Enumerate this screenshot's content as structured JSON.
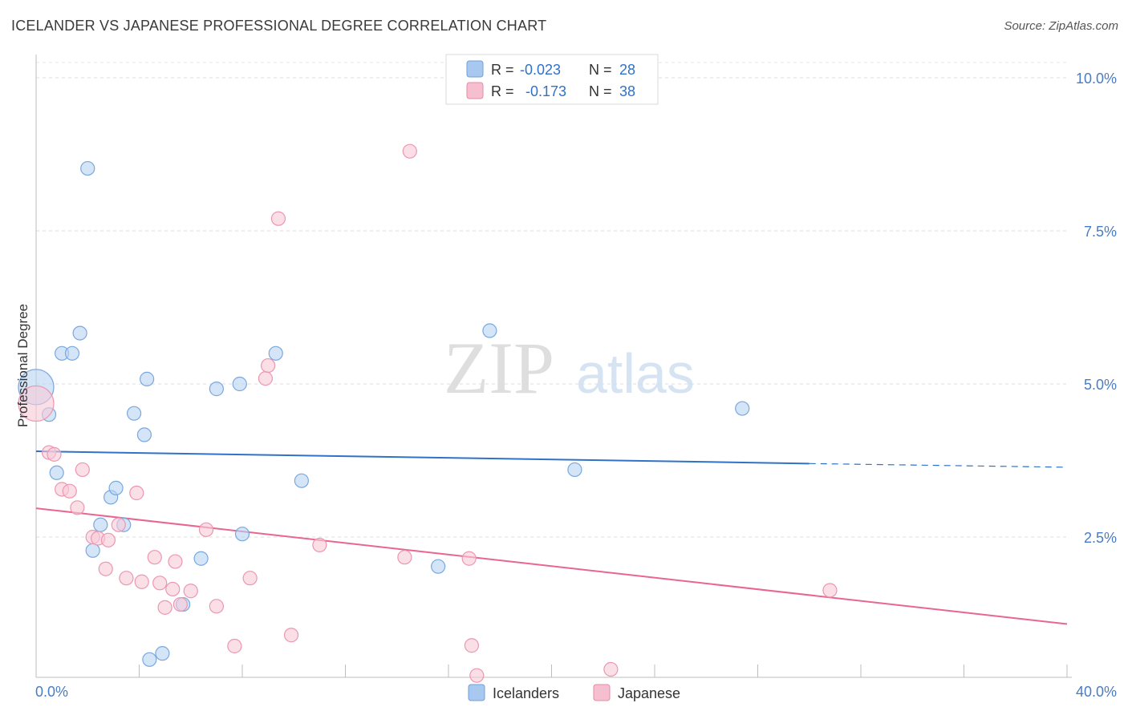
{
  "header": {
    "title": "ICELANDER VS JAPANESE PROFESSIONAL DEGREE CORRELATION CHART",
    "source": "Source: ZipAtlas.com"
  },
  "watermark": {
    "part1": "ZIP",
    "part2": "atlas"
  },
  "legend_box": {
    "rows": [
      {
        "r_label": "R =",
        "r_value": "-0.023",
        "n_label": "N =",
        "n_value": "28",
        "color": "#a9c8f0",
        "stroke": "#6e9fd8"
      },
      {
        "r_label": "R =",
        "r_value": "-0.173",
        "n_label": "N =",
        "n_value": "38",
        "color": "#f6bfd0",
        "stroke": "#e58aa8"
      }
    ]
  },
  "bottom_legend": {
    "items": [
      {
        "label": "Icelanders",
        "color": "#a9c8f0",
        "stroke": "#6e9fd8"
      },
      {
        "label": "Japanese",
        "color": "#f6bfd0",
        "stroke": "#e58aa8"
      }
    ]
  },
  "colors": {
    "blue_line": "#2f72c8",
    "pink_line": "#e8668f",
    "blue_point_fill": "#b8d3f4",
    "blue_point_stroke": "#7aa8de",
    "pink_point_fill": "#f8c9d7",
    "pink_point_stroke": "#eb97b2",
    "tick_label": "#4a7cc4"
  },
  "chart_data": {
    "type": "scatter",
    "title": "ICELANDER VS JAPANESE PROFESSIONAL DEGREE CORRELATION CHART",
    "xlabel": "",
    "ylabel": "Professional Degree",
    "xlim": [
      0,
      40
    ],
    "ylim": [
      0,
      10.2
    ],
    "x_tick_labels": [
      "0.0%",
      "40.0%"
    ],
    "y_ticks": [
      2.5,
      5.0,
      7.5,
      10.0
    ],
    "y_tick_labels": [
      "2.5%",
      "5.0%",
      "7.5%",
      "10.0%"
    ],
    "grid": true,
    "legend_position": "top-center",
    "series": [
      {
        "name": "Icelanders",
        "r": -0.023,
        "n": 28,
        "trend": {
          "x_start": 0.0,
          "y_start": 3.9,
          "x_end_solid": 30.0,
          "y_end_solid": 3.7,
          "x_end_dashed": 40.0,
          "y_end_dashed": 3.64
        },
        "points": [
          {
            "x": 0.0,
            "y": 4.95,
            "size": "large"
          },
          {
            "x": 0.5,
            "y": 4.5
          },
          {
            "x": 0.8,
            "y": 3.55
          },
          {
            "x": 1.0,
            "y": 5.5
          },
          {
            "x": 1.4,
            "y": 5.5
          },
          {
            "x": 1.7,
            "y": 5.83
          },
          {
            "x": 2.0,
            "y": 8.52
          },
          {
            "x": 2.2,
            "y": 2.28
          },
          {
            "x": 2.5,
            "y": 2.7
          },
          {
            "x": 2.9,
            "y": 3.15
          },
          {
            "x": 3.1,
            "y": 3.3
          },
          {
            "x": 3.4,
            "y": 2.7
          },
          {
            "x": 3.8,
            "y": 4.52
          },
          {
            "x": 4.2,
            "y": 4.17
          },
          {
            "x": 4.3,
            "y": 5.08
          },
          {
            "x": 4.4,
            "y": 0.5
          },
          {
            "x": 4.9,
            "y": 0.6
          },
          {
            "x": 5.7,
            "y": 1.4
          },
          {
            "x": 6.4,
            "y": 2.15
          },
          {
            "x": 7.0,
            "y": 4.92
          },
          {
            "x": 7.9,
            "y": 5.0
          },
          {
            "x": 8.0,
            "y": 2.55
          },
          {
            "x": 9.3,
            "y": 5.5
          },
          {
            "x": 10.3,
            "y": 3.42
          },
          {
            "x": 15.6,
            "y": 2.02
          },
          {
            "x": 17.6,
            "y": 5.87
          },
          {
            "x": 20.9,
            "y": 3.6
          },
          {
            "x": 27.4,
            "y": 4.6
          }
        ]
      },
      {
        "name": "Japanese",
        "r": -0.173,
        "n": 38,
        "trend": {
          "x_start": 0.0,
          "y_start": 2.97,
          "x_end": 40.0,
          "y_end": 1.08
        },
        "points": [
          {
            "x": 0.0,
            "y": 4.68,
            "size": "large"
          },
          {
            "x": 0.5,
            "y": 3.88
          },
          {
            "x": 0.7,
            "y": 3.85
          },
          {
            "x": 1.0,
            "y": 3.28
          },
          {
            "x": 1.3,
            "y": 3.25
          },
          {
            "x": 1.6,
            "y": 2.98
          },
          {
            "x": 1.8,
            "y": 3.6
          },
          {
            "x": 2.2,
            "y": 2.5
          },
          {
            "x": 2.4,
            "y": 2.48
          },
          {
            "x": 2.7,
            "y": 1.98
          },
          {
            "x": 2.8,
            "y": 2.45
          },
          {
            "x": 3.2,
            "y": 2.7
          },
          {
            "x": 3.5,
            "y": 1.83
          },
          {
            "x": 3.9,
            "y": 3.22
          },
          {
            "x": 4.1,
            "y": 1.77
          },
          {
            "x": 4.6,
            "y": 2.17
          },
          {
            "x": 4.8,
            "y": 1.75
          },
          {
            "x": 5.0,
            "y": 1.35
          },
          {
            "x": 5.3,
            "y": 1.65
          },
          {
            "x": 5.4,
            "y": 2.1
          },
          {
            "x": 5.6,
            "y": 1.4
          },
          {
            "x": 6.0,
            "y": 1.62
          },
          {
            "x": 6.6,
            "y": 2.62
          },
          {
            "x": 7.0,
            "y": 1.37
          },
          {
            "x": 7.7,
            "y": 0.72
          },
          {
            "x": 8.3,
            "y": 1.83
          },
          {
            "x": 8.9,
            "y": 5.09
          },
          {
            "x": 9.0,
            "y": 5.3
          },
          {
            "x": 9.4,
            "y": 7.7
          },
          {
            "x": 9.9,
            "y": 0.9
          },
          {
            "x": 11.0,
            "y": 2.37
          },
          {
            "x": 14.3,
            "y": 2.17
          },
          {
            "x": 14.5,
            "y": 8.8
          },
          {
            "x": 17.1,
            "y": 0.24
          },
          {
            "x": 16.8,
            "y": 2.15
          },
          {
            "x": 16.9,
            "y": 0.73
          },
          {
            "x": 22.3,
            "y": 0.34
          },
          {
            "x": 30.8,
            "y": 1.63
          }
        ]
      }
    ]
  }
}
